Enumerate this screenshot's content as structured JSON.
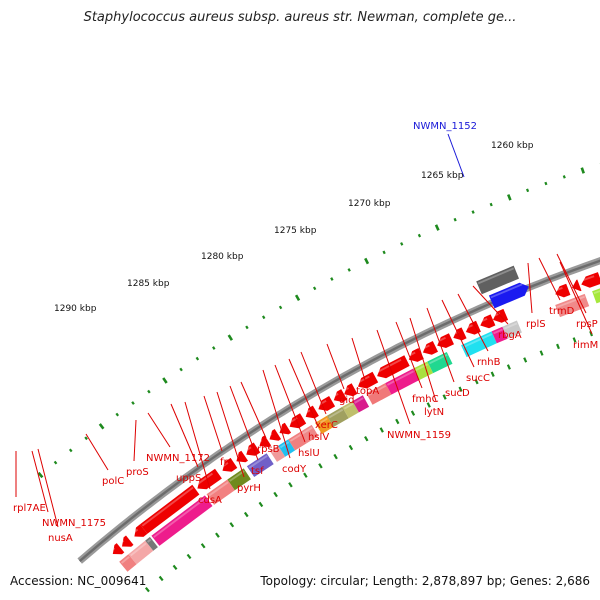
{
  "title": "Staphylococcus aureus subsp. aureus str. Newman, complete ge...",
  "footer": {
    "accession": "Accession: NC_009641",
    "summary": "Topology: circular; Length: 2,878,897 bp; Genes: 2,686"
  },
  "colors": {
    "backbone": "#8a8a8a",
    "ticks": "#1e8a1e",
    "gene_default": "#ee0000",
    "label_line": "#dd0000",
    "highlight_line": "#1a1ad8",
    "highlight_gene": "#1a1af0",
    "neighbor_gene": "#606060"
  },
  "scale_labels": [
    "1290 kbp",
    "1285 kbp",
    "1280 kbp",
    "1275 kbp",
    "1270 kbp",
    "1265 kbp",
    "1260 kbp"
  ],
  "highlight_label": "NWMN_1152",
  "gene_labels": [
    "rpl7AE",
    "NWMN_1175",
    "nusA",
    "polC",
    "proS",
    "NWMN_1172",
    "uppS",
    "cdsA",
    "frr",
    "pyrH",
    "tsf",
    "rpsB",
    "codY",
    "hslU",
    "hslV",
    "xerC",
    "gid",
    "topA",
    "NWMN_1159",
    "fmhC",
    "lytN",
    "sucD",
    "sucC",
    "rnhB",
    "rbgA",
    "rplS",
    "trmD",
    "rpsP",
    "rimM"
  ]
}
